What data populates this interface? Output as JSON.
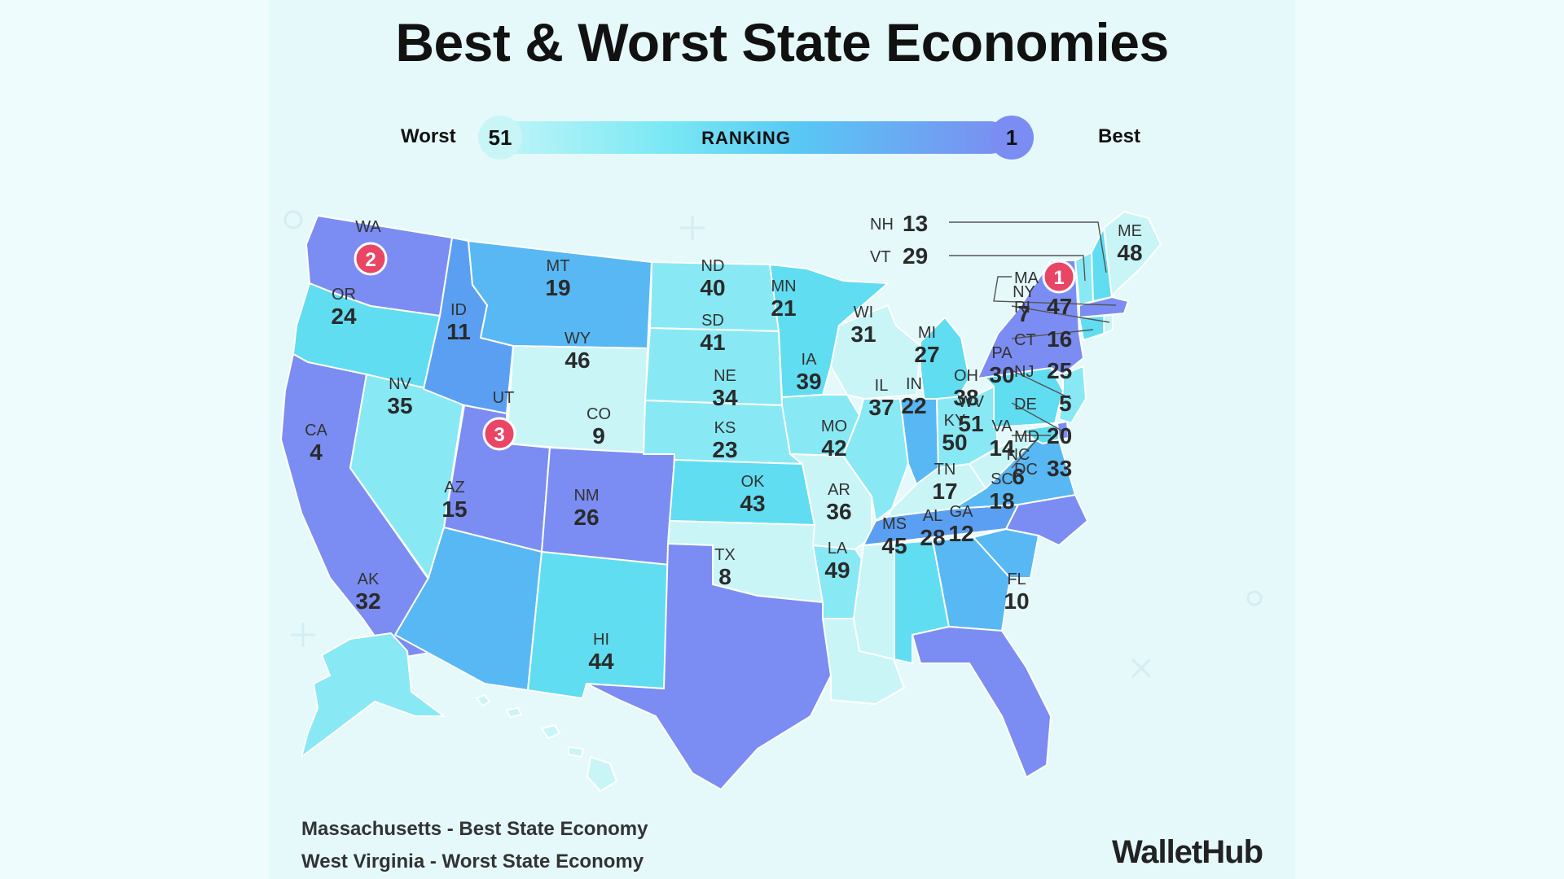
{
  "title": "Best & Worst State Economies",
  "legend": {
    "worst_label": "Worst",
    "worst_value": "51",
    "center_label": "RANKING",
    "best_value": "1",
    "best_label": "Best",
    "colors": [
      "#c6f6f8",
      "#79e8f4",
      "#58c8f4",
      "#7b8df2"
    ]
  },
  "states": {
    "WA": {
      "abbr": "WA",
      "rank": "2"
    },
    "OR": {
      "abbr": "OR",
      "rank": "24"
    },
    "CA": {
      "abbr": "CA",
      "rank": "4"
    },
    "NV": {
      "abbr": "NV",
      "rank": "35"
    },
    "ID": {
      "abbr": "ID",
      "rank": "11"
    },
    "MT": {
      "abbr": "MT",
      "rank": "19"
    },
    "WY": {
      "abbr": "WY",
      "rank": "46"
    },
    "UT": {
      "abbr": "UT",
      "rank": "3"
    },
    "CO": {
      "abbr": "CO",
      "rank": "9"
    },
    "AZ": {
      "abbr": "AZ",
      "rank": "15"
    },
    "NM": {
      "abbr": "NM",
      "rank": "26"
    },
    "ND": {
      "abbr": "ND",
      "rank": "40"
    },
    "SD": {
      "abbr": "SD",
      "rank": "41"
    },
    "NE": {
      "abbr": "NE",
      "rank": "34"
    },
    "KS": {
      "abbr": "KS",
      "rank": "23"
    },
    "OK": {
      "abbr": "OK",
      "rank": "43"
    },
    "TX": {
      "abbr": "TX",
      "rank": "8"
    },
    "MN": {
      "abbr": "MN",
      "rank": "21"
    },
    "IA": {
      "abbr": "IA",
      "rank": "39"
    },
    "MO": {
      "abbr": "MO",
      "rank": "42"
    },
    "AR": {
      "abbr": "AR",
      "rank": "36"
    },
    "LA": {
      "abbr": "LA",
      "rank": "49"
    },
    "WI": {
      "abbr": "WI",
      "rank": "31"
    },
    "IL": {
      "abbr": "IL",
      "rank": "37"
    },
    "MI": {
      "abbr": "MI",
      "rank": "27"
    },
    "IN": {
      "abbr": "IN",
      "rank": "22"
    },
    "OH": {
      "abbr": "OH",
      "rank": "38"
    },
    "KY": {
      "abbr": "KY",
      "rank": "50"
    },
    "TN": {
      "abbr": "TN",
      "rank": "17"
    },
    "MS": {
      "abbr": "MS",
      "rank": "45"
    },
    "AL": {
      "abbr": "AL",
      "rank": "28"
    },
    "GA": {
      "abbr": "GA",
      "rank": "12"
    },
    "FL": {
      "abbr": "FL",
      "rank": "10"
    },
    "SC": {
      "abbr": "SC",
      "rank": "18"
    },
    "NC": {
      "abbr": "NC",
      "rank": "6"
    },
    "VA": {
      "abbr": "VA",
      "rank": "14"
    },
    "WV": {
      "abbr": "WV",
      "rank": "51"
    },
    "PA": {
      "abbr": "PA",
      "rank": "30"
    },
    "NY": {
      "abbr": "NY",
      "rank": "7"
    },
    "ME": {
      "abbr": "ME",
      "rank": "48"
    },
    "AK": {
      "abbr": "AK",
      "rank": "32"
    },
    "HI": {
      "abbr": "HI",
      "rank": "44"
    },
    "NH": {
      "abbr": "NH",
      "rank": "13"
    },
    "VT": {
      "abbr": "VT",
      "rank": "29"
    },
    "MA": {
      "abbr": "MA",
      "rank": "1"
    },
    "RI": {
      "abbr": "RI",
      "rank": "47"
    },
    "CT": {
      "abbr": "CT",
      "rank": "16"
    },
    "NJ": {
      "abbr": "NJ",
      "rank": "25"
    },
    "DE": {
      "abbr": "DE",
      "rank": "5"
    },
    "MD": {
      "abbr": "MD",
      "rank": "20"
    },
    "DC": {
      "abbr": "DC",
      "rank": "33"
    }
  },
  "footer": {
    "best_note": "Massachusetts - Best State Economy",
    "worst_note": "West Virginia - Worst State Economy"
  },
  "brand": "WalletHub"
}
